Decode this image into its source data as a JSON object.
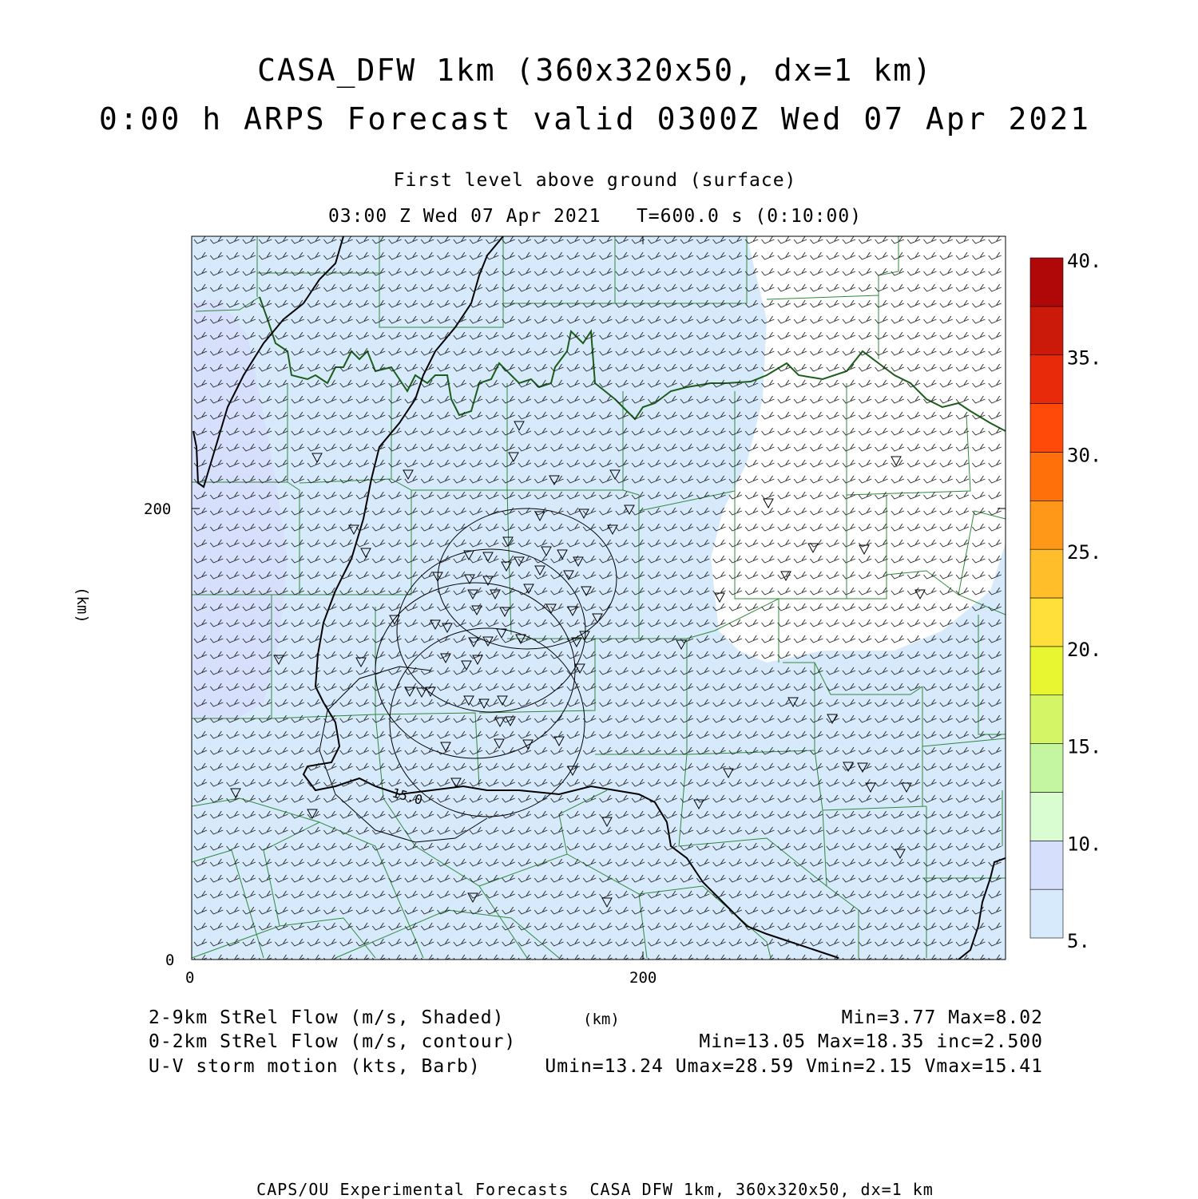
{
  "title": {
    "line1": "CASA_DFW 1km (360x320x50, dx=1 km)",
    "line2": "0:00 h ARPS Forecast valid 0300Z Wed 07 Apr 2021"
  },
  "subtitle": {
    "level": "First level above ground (surface)",
    "time": "03:00 Z Wed 07 Apr 2021   T=600.0 s (0:10:00)"
  },
  "axes": {
    "x_label": "(km)",
    "y_label": "(km)",
    "x_ticks": [
      "0",
      "200"
    ],
    "y_ticks": [
      "0",
      "200"
    ]
  },
  "colorbar": {
    "labels": [
      "40.",
      "35.",
      "30.",
      "25.",
      "20.",
      "15.",
      "10.",
      "5."
    ],
    "colors": [
      "#d6eafc",
      "#d6dffc",
      "#d9fcd0",
      "#c4f5a0",
      "#d4f566",
      "#e8f531",
      "#ffe03a",
      "#ffbe2a",
      "#ff9818",
      "#ff700a",
      "#ff4a0a",
      "#e82a0a",
      "#cc1a0a",
      "#b00808"
    ]
  },
  "legend": {
    "shaded": "2-9km StRel Flow (m/s, Shaded)",
    "contour": "0-2km StRel Flow (m/s, contour)",
    "barb": "U-V storm motion (kts, Barb)",
    "shaded_stats": "Min=3.77 Max=8.02",
    "contour_stats": "Min=13.05 Max=18.35 inc=2.500",
    "barb_stats": "Umin=13.24 Umax=28.59 Vmin=2.15 Vmax=15.41",
    "x_unit": "(km)"
  },
  "contour_label": "15.0",
  "credit": "CAPS/OU Experimental Forecasts  CASA DFW 1km, 360x320x50, dx=1 km",
  "colors": {
    "county_lines": "#2f8a3a",
    "state_border": "#1a5e1a",
    "river": "#000000",
    "shade_light": "#d6eafc",
    "shade_mid": "#d6dffc"
  }
}
